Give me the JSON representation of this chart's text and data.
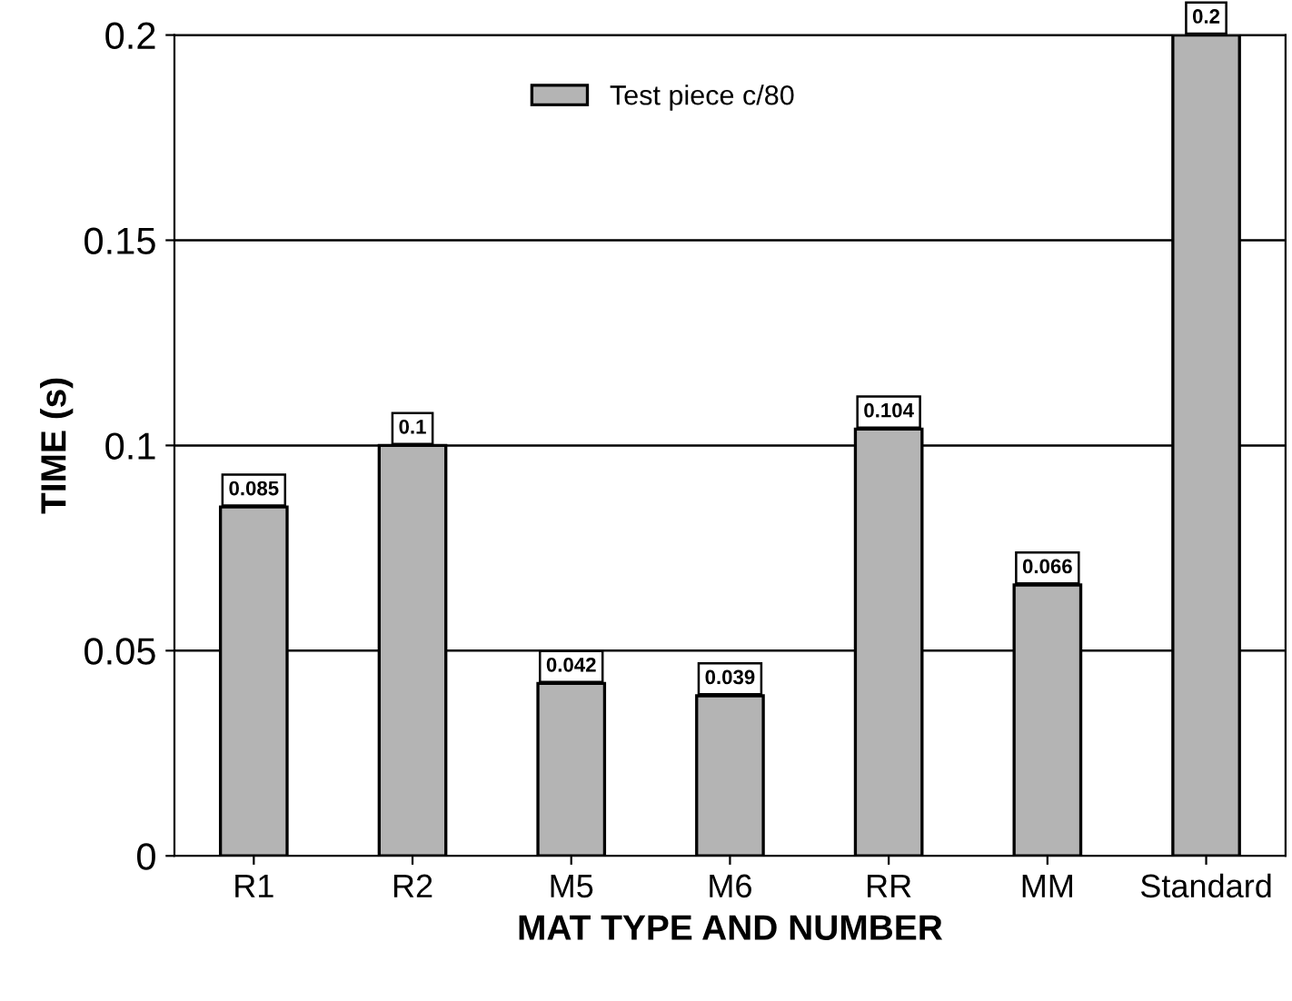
{
  "chart_data": {
    "type": "bar",
    "xlabel": "MAT TYPE AND NUMBER",
    "ylabel": "TIME (s)",
    "categories": [
      "R1",
      "R2",
      "M5",
      "M6",
      "RR",
      "MM",
      "Standard"
    ],
    "series": [
      {
        "name": "Test piece c/80",
        "color": "#b4b4b4",
        "values": [
          0.085,
          0.1,
          0.042,
          0.039,
          0.104,
          0.066,
          0.2
        ]
      }
    ],
    "ylim": [
      0,
      0.2
    ],
    "yticks": [
      0,
      0.05,
      0.1,
      0.15,
      0.2
    ],
    "grid": "y",
    "legend": "top",
    "data_labels": true
  }
}
